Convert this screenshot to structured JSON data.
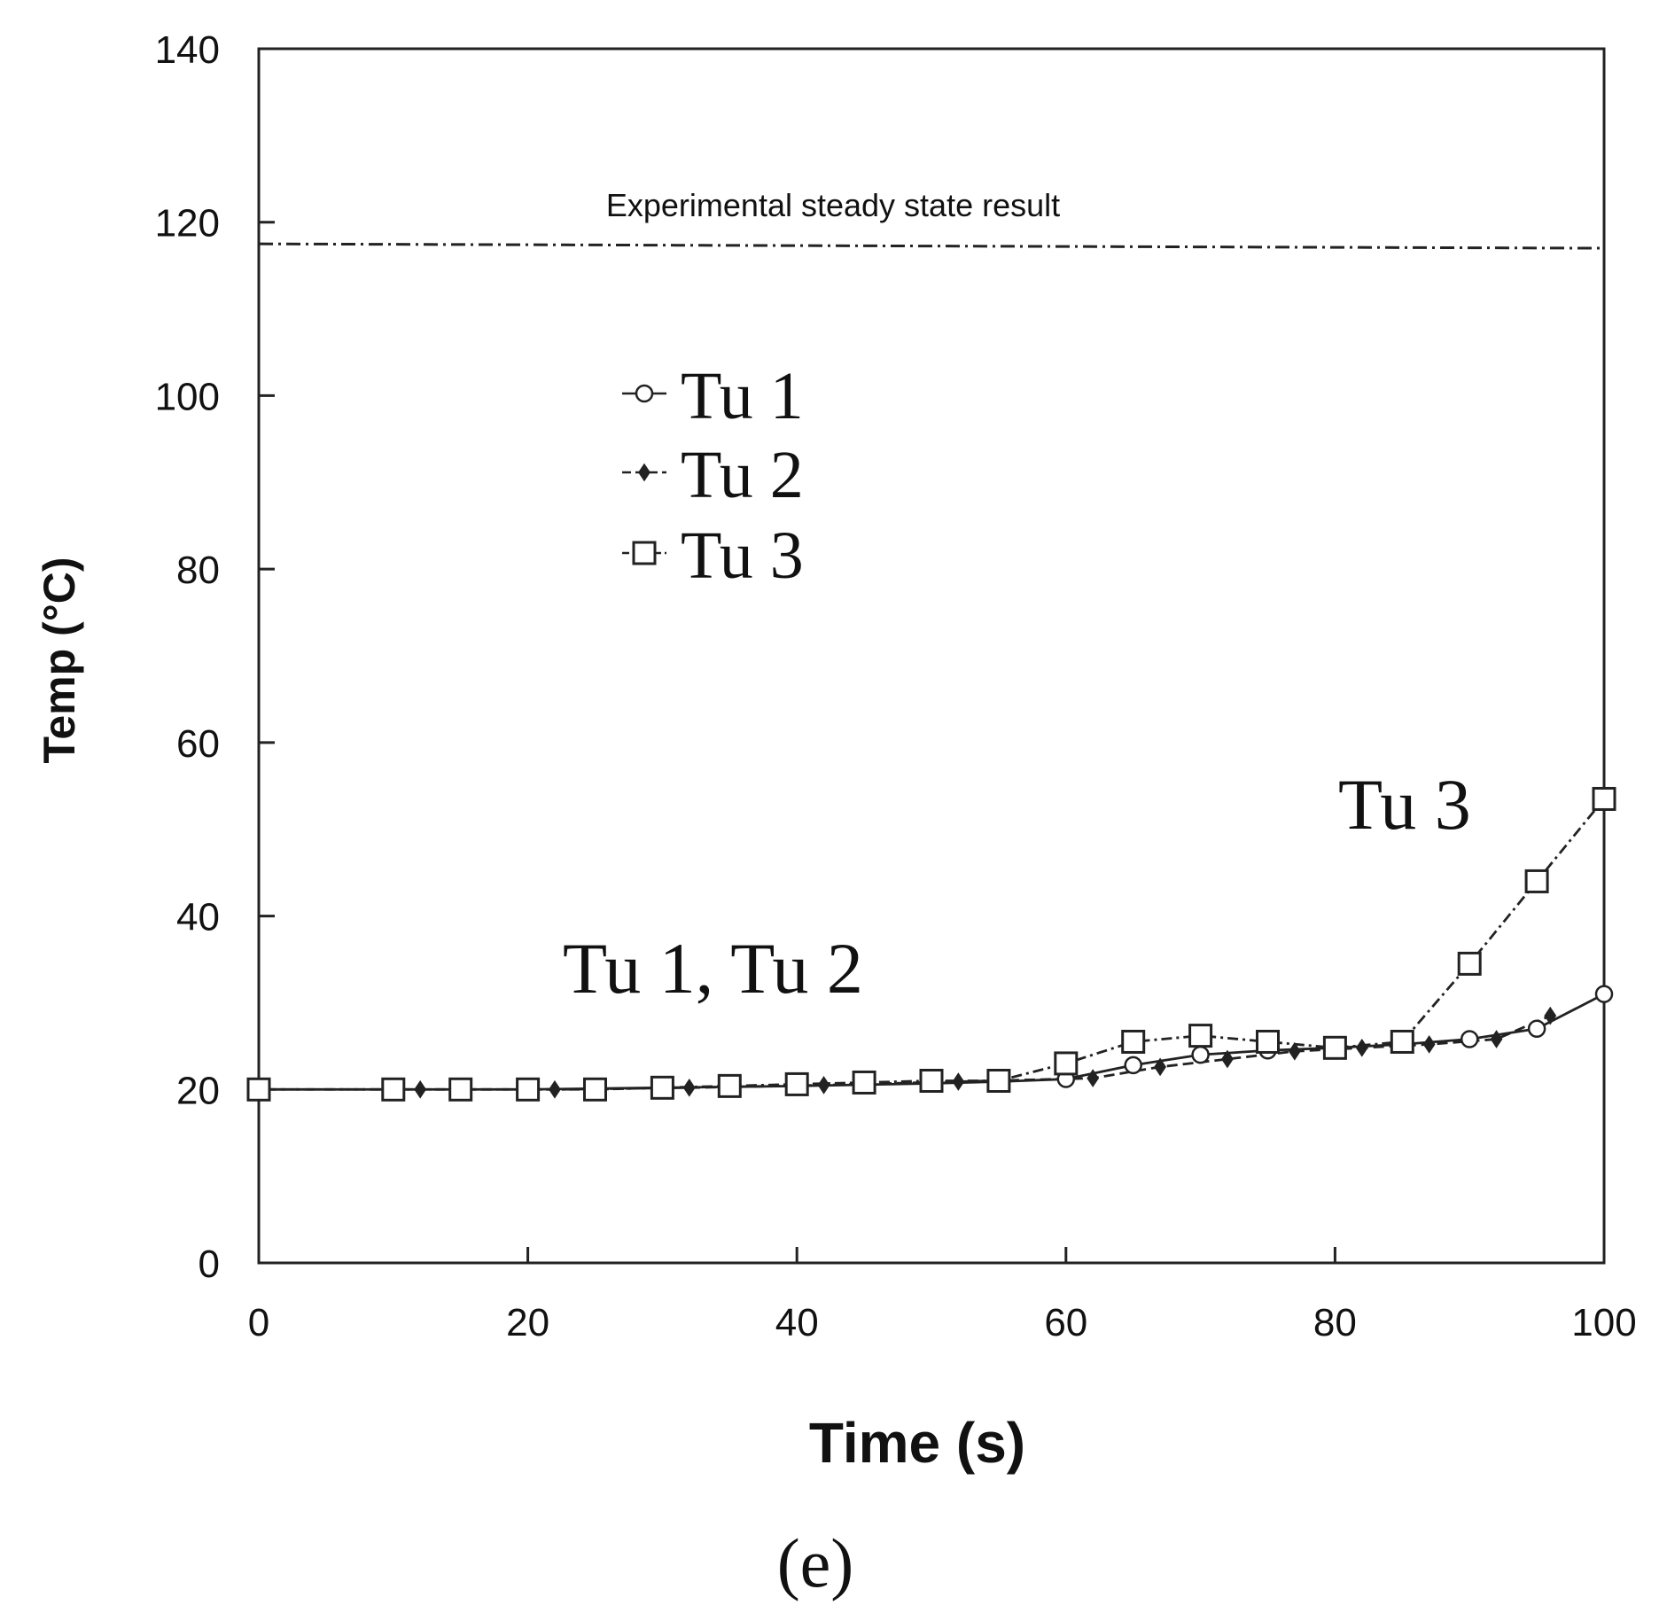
{
  "chart_data": {
    "type": "line",
    "panel_label": "(e)",
    "xlabel": "Time (s)",
    "ylabel": "Temp (°C)",
    "xlim": [
      0,
      100
    ],
    "ylim": [
      0,
      140
    ],
    "x_ticks": [
      "0",
      "20",
      "40",
      "60",
      "80",
      "100"
    ],
    "y_ticks": [
      "0",
      "20",
      "40",
      "60",
      "80",
      "100",
      "120",
      "140"
    ],
    "grid": false,
    "legend_position": "upper-left",
    "reference_line": {
      "label": "Experimental steady state result",
      "y": [
        117.5,
        117.0
      ]
    },
    "annotations": [
      "Tu 3",
      "Tu 1, Tu 2"
    ],
    "series": [
      {
        "name": "Tu 1",
        "marker": "circle",
        "line": "solid",
        "points": [
          [
            0,
            20
          ],
          [
            10,
            20
          ],
          [
            20,
            20
          ],
          [
            30,
            20.2
          ],
          [
            40,
            20.4
          ],
          [
            50,
            20.7
          ],
          [
            55,
            20.9
          ],
          [
            60,
            21.2
          ],
          [
            65,
            22.8
          ],
          [
            70,
            24
          ],
          [
            75,
            24.5
          ],
          [
            80,
            24.8
          ],
          [
            85,
            25.2
          ],
          [
            90,
            25.8
          ],
          [
            95,
            27
          ],
          [
            100,
            31
          ]
        ]
      },
      {
        "name": "Tu 2",
        "marker": "diamond",
        "line": "dashed",
        "points": [
          [
            0,
            20
          ],
          [
            12,
            20
          ],
          [
            22,
            20
          ],
          [
            32,
            20.2
          ],
          [
            42,
            20.5
          ],
          [
            52,
            20.9
          ],
          [
            62,
            21.3
          ],
          [
            67,
            22.6
          ],
          [
            72,
            23.5
          ],
          [
            77,
            24.4
          ],
          [
            82,
            24.8
          ],
          [
            87,
            25.2
          ],
          [
            92,
            25.8
          ],
          [
            96,
            28.5
          ]
        ]
      },
      {
        "name": "Tu 3",
        "marker": "square",
        "line": "dash-dot",
        "points": [
          [
            0,
            20
          ],
          [
            10,
            20
          ],
          [
            15,
            20
          ],
          [
            20,
            20
          ],
          [
            25,
            20
          ],
          [
            30,
            20.2
          ],
          [
            35,
            20.4
          ],
          [
            40,
            20.6
          ],
          [
            45,
            20.8
          ],
          [
            50,
            21
          ],
          [
            55,
            21
          ],
          [
            60,
            23
          ],
          [
            65,
            25.5
          ],
          [
            70,
            26.2
          ],
          [
            75,
            25.5
          ],
          [
            80,
            24.8
          ],
          [
            85,
            25.5
          ],
          [
            90,
            34.5
          ],
          [
            95,
            44
          ],
          [
            100,
            53.5
          ]
        ]
      }
    ]
  }
}
